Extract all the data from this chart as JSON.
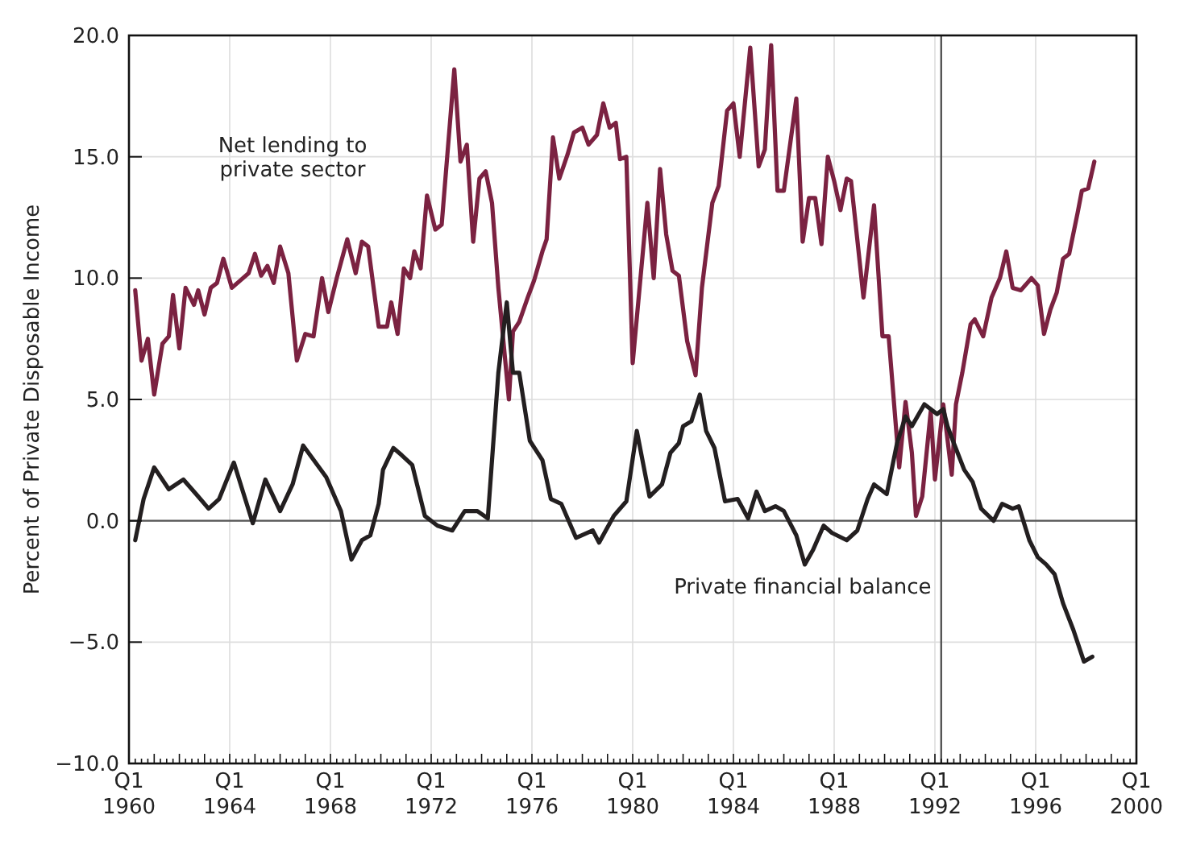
{
  "chart_data": {
    "type": "line",
    "ylabel": "Percent of Private Disposable Income",
    "xlim": [
      "1960-01",
      "2000-01"
    ],
    "ylim": [
      -10,
      20
    ],
    "xticks": [
      {
        "value": "1960-01",
        "label": "Q1 1960"
      },
      {
        "value": "1964-01",
        "label": "Q1 1964"
      },
      {
        "value": "1968-01",
        "label": "Q1 1968"
      },
      {
        "value": "1972-01",
        "label": "Q1 1972"
      },
      {
        "value": "1976-01",
        "label": "Q1 1976"
      },
      {
        "value": "1980-01",
        "label": "Q1 1980"
      },
      {
        "value": "1984-01",
        "label": "Q1 1984"
      },
      {
        "value": "1988-01",
        "label": "Q1 1988"
      },
      {
        "value": "1992-01",
        "label": "Q1 1992"
      },
      {
        "value": "1996-01",
        "label": "Q1 1996"
      },
      {
        "value": "2000-01",
        "label": "Q1 2000"
      }
    ],
    "yticks": [
      {
        "value": -10,
        "label": "−10.0"
      },
      {
        "value": -5,
        "label": "−5.0"
      },
      {
        "value": 0,
        "label": "0.0"
      },
      {
        "value": 5,
        "label": "5.0"
      },
      {
        "value": 10,
        "label": "10.0"
      },
      {
        "value": 15,
        "label": "15.0"
      },
      {
        "value": 20,
        "label": "20.0"
      }
    ],
    "grid": true,
    "legend": false,
    "marker": "none",
    "line_style": "solid",
    "ref_lines": [
      {
        "axis": "y",
        "value": 0,
        "color": "#555555"
      },
      {
        "axis": "x",
        "value": "1992-04",
        "color": "#555555"
      }
    ],
    "series": [
      {
        "name": "Net lending to private sector",
        "color": "#7b2241",
        "x": [
          "1960-04",
          "1960-07",
          "1960-10",
          "1961-01",
          "1961-05",
          "1961-08",
          "1961-10",
          "1962-01",
          "1962-04",
          "1962-08",
          "1962-10",
          "1963-01",
          "1963-04",
          "1963-07",
          "1963-10",
          "1964-02",
          "1964-06",
          "1964-10",
          "1965-01",
          "1965-04",
          "1965-07",
          "1965-10",
          "1966-01",
          "1966-05",
          "1966-09",
          "1967-01",
          "1967-05",
          "1967-09",
          "1967-12",
          "1968-04",
          "1968-09",
          "1969-01",
          "1969-04",
          "1969-07",
          "1969-12",
          "1970-04",
          "1970-06",
          "1970-09",
          "1970-12",
          "1971-03",
          "1971-05",
          "1971-08",
          "1971-11",
          "1972-03",
          "1972-06",
          "1972-12",
          "1973-03",
          "1973-06",
          "1973-09",
          "1973-12",
          "1974-03",
          "1974-06",
          "1974-09",
          "1975-02",
          "1975-04",
          "1975-07",
          "1975-11",
          "1976-02",
          "1976-06",
          "1976-08",
          "1976-11",
          "1977-02",
          "1977-06",
          "1977-09",
          "1978-01",
          "1978-04",
          "1978-08",
          "1978-11",
          "1979-02",
          "1979-05",
          "1979-07",
          "1979-10",
          "1980-01",
          "1980-08",
          "1980-11",
          "1981-02",
          "1981-05",
          "1981-08",
          "1981-11",
          "1982-03",
          "1982-07",
          "1982-10",
          "1983-03",
          "1983-06",
          "1983-10",
          "1984-01",
          "1984-04",
          "1984-09",
          "1985-01",
          "1985-04",
          "1985-07",
          "1985-10",
          "1986-01",
          "1986-07",
          "1986-10",
          "1987-01",
          "1987-04",
          "1987-07",
          "1987-10",
          "1988-01",
          "1988-04",
          "1988-07",
          "1988-09",
          "1988-12",
          "1989-03",
          "1989-08",
          "1989-12",
          "1990-03",
          "1990-08",
          "1990-11",
          "1991-02",
          "1991-04",
          "1991-07",
          "1991-11",
          "1992-01",
          "1992-05",
          "1992-09",
          "1992-11",
          "1993-02",
          "1993-06",
          "1993-08",
          "1993-12",
          "1994-04",
          "1994-08",
          "1994-11",
          "1995-02",
          "1995-06",
          "1995-11",
          "1996-02",
          "1996-05",
          "1996-08",
          "1996-11",
          "1997-02",
          "1997-05",
          "1997-09",
          "1997-11",
          "1998-02",
          "1998-05"
        ],
        "values": [
          9.5,
          6.6,
          7.5,
          5.2,
          7.3,
          7.6,
          9.3,
          7.1,
          9.6,
          8.9,
          9.5,
          8.5,
          9.6,
          9.8,
          10.8,
          9.6,
          9.9,
          10.2,
          11.0,
          10.1,
          10.5,
          9.8,
          11.3,
          10.2,
          6.6,
          7.7,
          7.6,
          10.0,
          8.6,
          10.0,
          11.6,
          10.2,
          11.5,
          11.3,
          8.0,
          8.0,
          9.0,
          7.7,
          10.4,
          10.0,
          11.1,
          10.4,
          13.4,
          12.0,
          12.2,
          18.6,
          14.8,
          15.5,
          11.5,
          14.1,
          14.4,
          13.1,
          9.6,
          5.0,
          7.8,
          8.2,
          9.2,
          9.9,
          11.1,
          11.6,
          15.8,
          14.1,
          15.1,
          16.0,
          16.2,
          15.5,
          15.9,
          17.2,
          16.2,
          16.4,
          14.9,
          15.0,
          6.5,
          13.1,
          10.0,
          14.5,
          11.8,
          10.3,
          10.1,
          7.4,
          6.0,
          9.6,
          13.1,
          13.8,
          16.9,
          17.2,
          15.0,
          19.5,
          14.6,
          15.3,
          19.6,
          13.6,
          13.6,
          17.4,
          11.5,
          13.3,
          13.3,
          11.4,
          15.0,
          14.0,
          12.8,
          14.1,
          14.0,
          11.6,
          9.2,
          13.0,
          7.6,
          7.6,
          2.2,
          4.9,
          2.8,
          0.2,
          1.0,
          4.5,
          1.7,
          4.8,
          1.9,
          4.8,
          6.1,
          8.1,
          8.3,
          7.6,
          9.2,
          10.0,
          11.1,
          9.6,
          9.5,
          10.0,
          9.7,
          7.7,
          8.7,
          9.4,
          10.8,
          11.0,
          12.7,
          13.6,
          13.7,
          14.8
        ]
      },
      {
        "name": "Private financial balance",
        "color": "#231f20",
        "x": [
          "1960-04",
          "1960-08",
          "1961-01",
          "1961-08",
          "1962-03",
          "1962-09",
          "1963-03",
          "1963-08",
          "1964-03",
          "1964-12",
          "1965-06",
          "1966-01",
          "1966-07",
          "1966-12",
          "1967-11",
          "1968-06",
          "1968-11",
          "1969-04",
          "1969-08",
          "1969-12",
          "1970-02",
          "1970-07",
          "1970-11",
          "1971-04",
          "1971-10",
          "1972-04",
          "1972-11",
          "1973-05",
          "1973-11",
          "1974-04",
          "1974-09",
          "1975-01",
          "1975-04",
          "1975-07",
          "1975-12",
          "1976-06",
          "1976-10",
          "1977-03",
          "1977-10",
          "1978-06",
          "1978-09",
          "1979-04",
          "1979-10",
          "1980-03",
          "1980-09",
          "1981-03",
          "1981-07",
          "1981-11",
          "1982-01",
          "1982-05",
          "1982-09",
          "1982-12",
          "1983-04",
          "1983-09",
          "1984-03",
          "1984-08",
          "1984-12",
          "1985-04",
          "1985-09",
          "1986-01",
          "1986-07",
          "1986-11",
          "1987-03",
          "1987-08",
          "1987-12",
          "1988-07",
          "1988-12",
          "1989-05",
          "1989-08",
          "1990-02",
          "1990-07",
          "1990-11",
          "1991-02",
          "1991-08",
          "1992-02",
          "1992-05",
          "1992-07",
          "1992-10",
          "1993-03",
          "1993-07",
          "1993-11",
          "1994-05",
          "1994-09",
          "1995-02",
          "1995-05",
          "1995-10",
          "1996-02",
          "1996-06",
          "1996-10",
          "1997-02",
          "1997-07",
          "1997-12",
          "1998-04"
        ],
        "values": [
          -0.8,
          0.9,
          2.2,
          1.3,
          1.7,
          1.1,
          0.5,
          0.9,
          2.4,
          -0.1,
          1.7,
          0.4,
          1.5,
          3.1,
          1.8,
          0.4,
          -1.6,
          -0.8,
          -0.6,
          0.7,
          2.1,
          3.0,
          2.7,
          2.3,
          0.2,
          -0.2,
          -0.4,
          0.4,
          0.4,
          0.1,
          6.1,
          9.0,
          6.1,
          6.1,
          3.3,
          2.5,
          0.9,
          0.7,
          -0.7,
          -0.4,
          -0.9,
          0.2,
          0.8,
          3.7,
          1.0,
          1.5,
          2.8,
          3.2,
          3.9,
          4.1,
          5.2,
          3.7,
          3.0,
          0.8,
          0.9,
          0.1,
          1.2,
          0.4,
          0.6,
          0.4,
          -0.6,
          -1.8,
          -1.2,
          -0.2,
          -0.5,
          -0.8,
          -0.4,
          0.9,
          1.5,
          1.1,
          3.2,
          4.3,
          3.9,
          4.8,
          4.4,
          4.6,
          3.9,
          3.2,
          2.1,
          1.6,
          0.5,
          0.0,
          0.7,
          0.5,
          0.6,
          -0.8,
          -1.5,
          -1.8,
          -2.2,
          -3.4,
          -4.5,
          -5.8,
          -5.6
        ]
      }
    ]
  }
}
